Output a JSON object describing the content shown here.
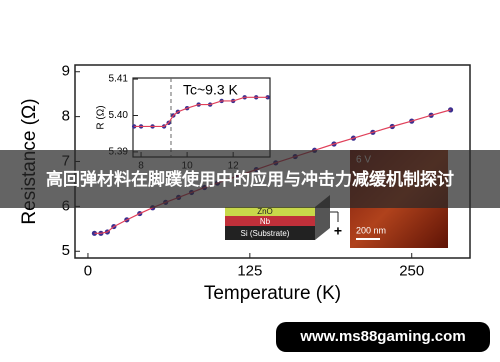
{
  "chart_data": [
    {
      "type": "line",
      "x_label": "Temperature (K)",
      "y_label": "Resistance (Ω)",
      "xlim": [
        -10,
        295
      ],
      "xticks": [
        0,
        125,
        250
      ],
      "ylim": [
        4.85,
        9.15
      ],
      "yticks": [
        5,
        6,
        7,
        8,
        9
      ],
      "series": [
        {
          "color": "#3b2f8f",
          "line_color": "#e0405a",
          "x": [
            5,
            10,
            15,
            20,
            30,
            40,
            50,
            60,
            70,
            80,
            90,
            100,
            115,
            130,
            145,
            160,
            175,
            190,
            205,
            220,
            235,
            250,
            265,
            280
          ],
          "values": [
            5.4,
            5.4,
            5.43,
            5.55,
            5.7,
            5.84,
            5.97,
            6.09,
            6.2,
            6.31,
            6.42,
            6.52,
            6.67,
            6.82,
            6.97,
            7.11,
            7.25,
            7.39,
            7.52,
            7.65,
            7.78,
            7.9,
            8.03,
            8.15
          ]
        }
      ]
    },
    {
      "type": "line",
      "y_label": "R (Ω)",
      "annotation": "Tc~9.3 K",
      "vline": 9.3,
      "xlim": [
        7.65,
        13.6
      ],
      "xticks": [
        8,
        10,
        12
      ],
      "ylim": [
        5.3886,
        5.4103
      ],
      "yticks": [
        5.39,
        {
          "value": 5.4,
          "label": "5.40"
        },
        5.41
      ],
      "series": [
        {
          "color": "#3b2f8f",
          "line_color": "#e0405a",
          "x": [
            7.7,
            8,
            8.5,
            9,
            9.2,
            9.4,
            9.6,
            10,
            10.5,
            11,
            11.5,
            12,
            12.5,
            13,
            13.5
          ],
          "values": [
            5.397,
            5.397,
            5.397,
            5.397,
            5.398,
            5.4,
            5.401,
            5.402,
            5.403,
            5.403,
            5.404,
            5.404,
            5.405,
            5.405,
            5.405
          ]
        }
      ]
    }
  ],
  "schematic": {
    "layers": [
      "ZnO",
      "Nb",
      "Si (Substrate)"
    ],
    "polarity": "+",
    "afm_voltage": "6 V",
    "scale_bar": "200 nm"
  },
  "banner": "高回弹材料在脚蹼使用中的应用与冲击力减缓机制探讨",
  "watermark": "www.ms88gaming.com"
}
